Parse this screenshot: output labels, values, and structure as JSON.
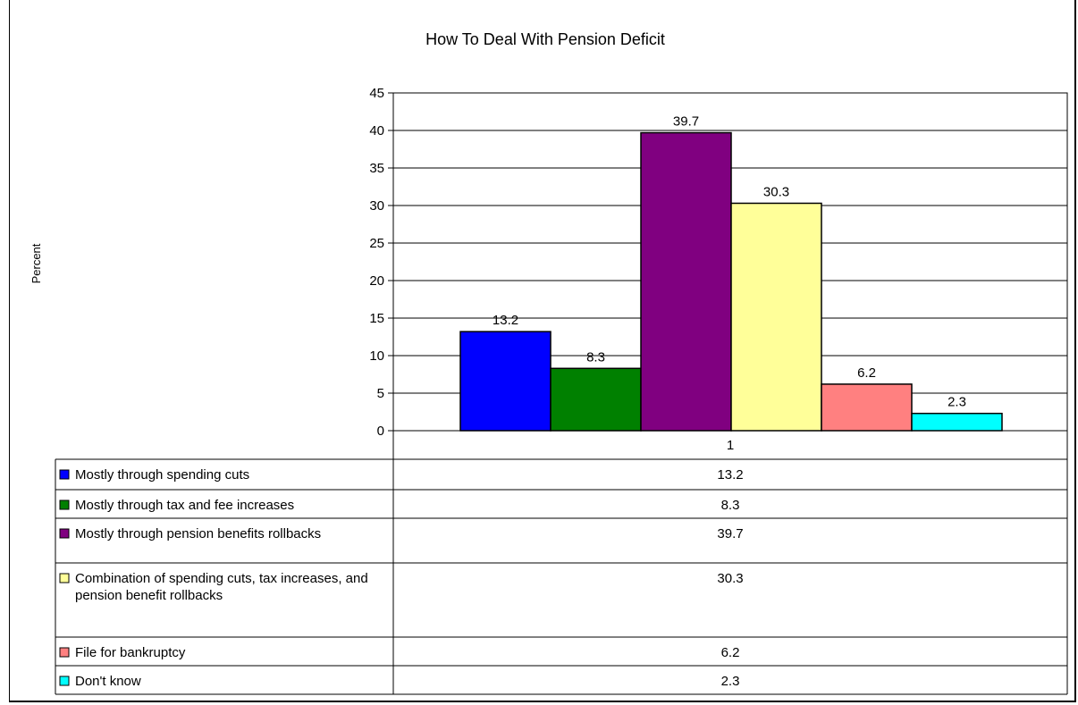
{
  "chart_data": {
    "type": "bar",
    "title": "How To Deal With Pension Deficit",
    "ylabel": "Percent",
    "xlabel": "",
    "categories": [
      "1"
    ],
    "ylim": [
      0,
      45
    ],
    "yticks": [
      0,
      5,
      10,
      15,
      20,
      25,
      30,
      35,
      40,
      45
    ],
    "grid": true,
    "legend_placement": "data-table-below",
    "series": [
      {
        "name": "Mostly through spending cuts",
        "values": [
          13.2
        ],
        "color": "#0000FF",
        "label": "13.2"
      },
      {
        "name": "Mostly through tax and fee increases",
        "values": [
          8.3
        ],
        "color": "#008000",
        "label": "8.3"
      },
      {
        "name": "Mostly through pension benefits rollbacks",
        "values": [
          39.7
        ],
        "color": "#800080",
        "label": "39.7"
      },
      {
        "name": "Combination of spending cuts, tax increases, and pension benefit rollbacks",
        "values": [
          30.3
        ],
        "color": "#FFFF99",
        "label": "30.3"
      },
      {
        "name": "File for bankruptcy",
        "values": [
          6.2
        ],
        "color": "#FF8080",
        "label": "6.2"
      },
      {
        "name": "Don't know",
        "values": [
          2.3
        ],
        "color": "#00FFFF",
        "label": "2.3"
      }
    ]
  }
}
